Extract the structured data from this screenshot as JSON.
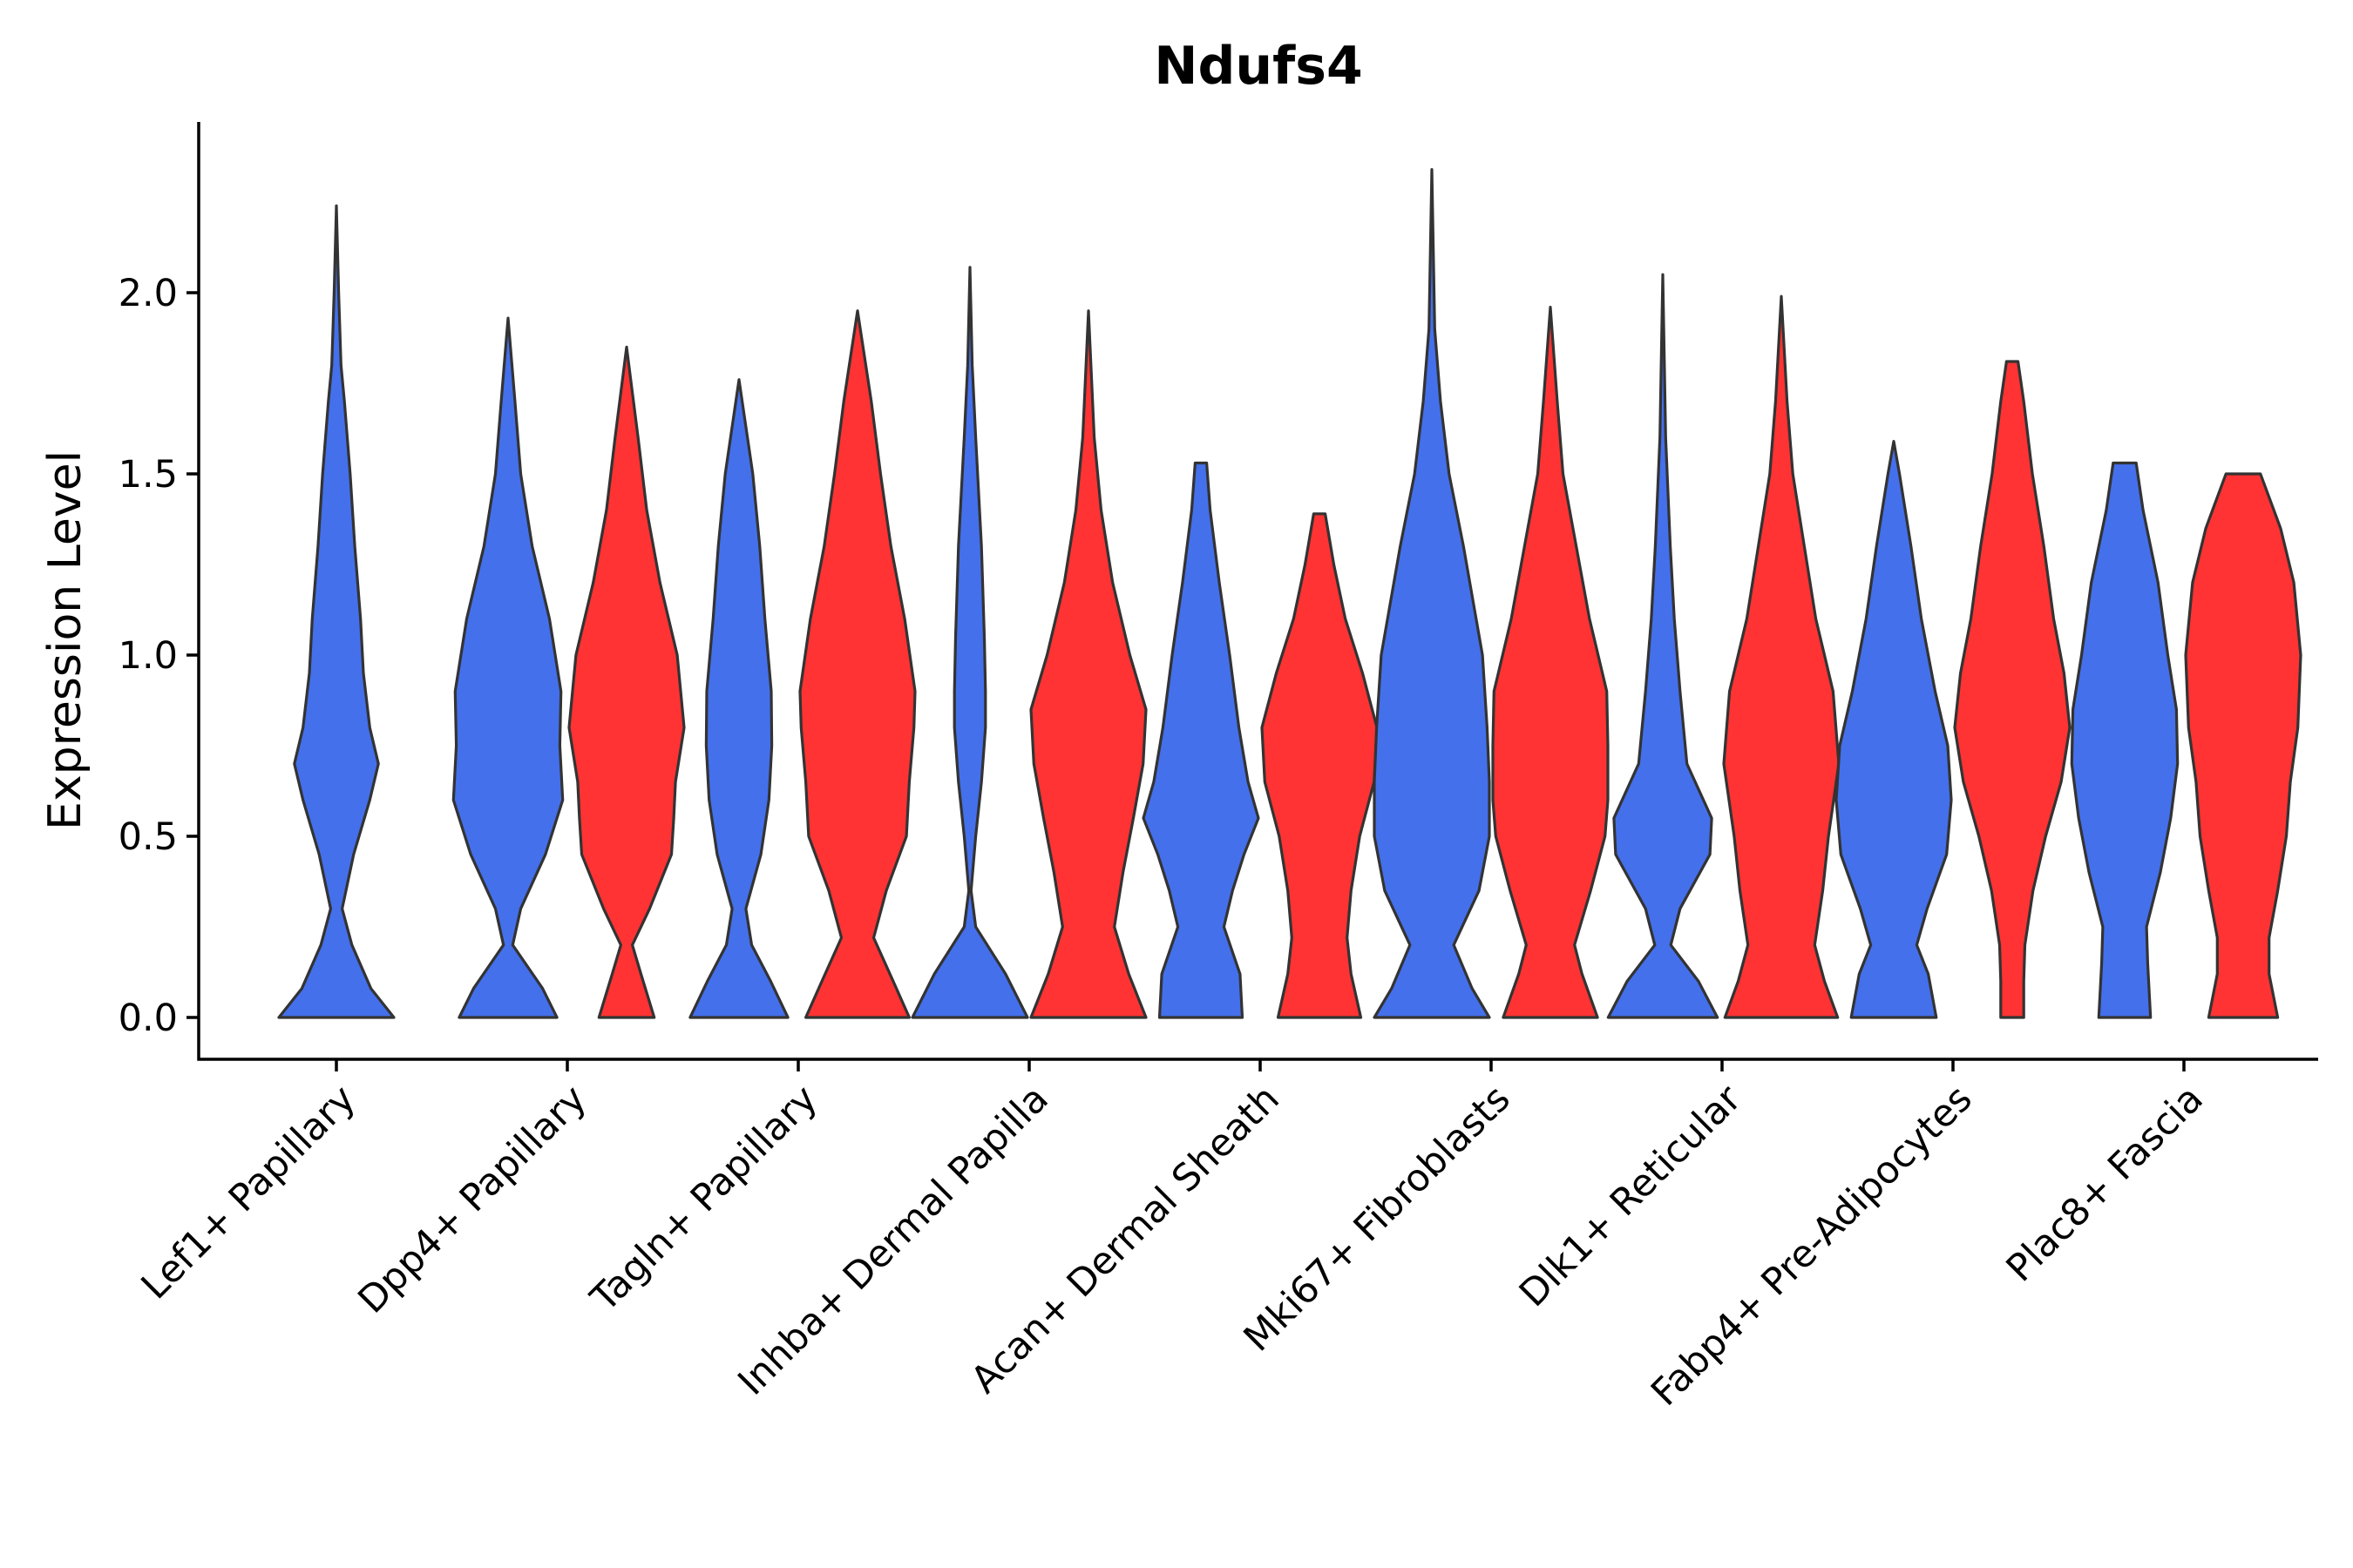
{
  "chart_data": {
    "type": "violin",
    "title": "Ndufs4",
    "ylabel": "Expression Level",
    "xlabel": "",
    "ylim": [
      -0.12,
      2.47
    ],
    "yticks": [
      "0.0",
      "0.5",
      "1.0",
      "1.5",
      "2.0"
    ],
    "ytick_values": [
      0.0,
      0.5,
      1.0,
      1.5,
      2.0
    ],
    "grid": false,
    "legend": "none",
    "categories": [
      "Lef1+ Papillary",
      "Dpp4+ Papillary",
      "Tagln+ Papillary",
      "Inhba+ Dermal Papilla",
      "Acan+ Dermal Sheath",
      "Mki67+ Fibroblasts",
      "Dlk1+ Reticular",
      "Fabp4+ Pre-Adipocytes",
      "Plac8+ Fascia"
    ],
    "colors": {
      "group_1": "#4470EC",
      "group_2": "#FF3333",
      "outline": "#333333"
    },
    "violins": [
      {
        "category": "Lef1+ Papillary",
        "group": "group_1",
        "max": 2.24,
        "profile": [
          [
            0.0,
            1.0
          ],
          [
            0.08,
            0.6
          ],
          [
            0.2,
            0.27
          ],
          [
            0.3,
            0.1
          ],
          [
            0.45,
            0.3
          ],
          [
            0.6,
            0.58
          ],
          [
            0.7,
            0.73
          ],
          [
            0.8,
            0.58
          ],
          [
            0.95,
            0.47
          ],
          [
            1.1,
            0.42
          ],
          [
            1.3,
            0.32
          ],
          [
            1.5,
            0.24
          ],
          [
            1.7,
            0.14
          ],
          [
            1.8,
            0.08
          ],
          [
            2.0,
            0.04
          ],
          [
            2.24,
            0.0
          ]
        ]
      },
      {
        "category": "Dpp4+ Papillary",
        "group": "group_1",
        "max": 1.93,
        "profile": [
          [
            0.0,
            0.85
          ],
          [
            0.08,
            0.6
          ],
          [
            0.2,
            0.08
          ],
          [
            0.3,
            0.22
          ],
          [
            0.45,
            0.65
          ],
          [
            0.6,
            0.95
          ],
          [
            0.75,
            0.9
          ],
          [
            0.9,
            0.92
          ],
          [
            1.1,
            0.72
          ],
          [
            1.3,
            0.42
          ],
          [
            1.5,
            0.22
          ],
          [
            1.7,
            0.12
          ],
          [
            1.93,
            0.0
          ]
        ]
      },
      {
        "category": "Dpp4+ Papillary",
        "group": "group_2",
        "max": 1.85,
        "profile": [
          [
            0.0,
            0.48
          ],
          [
            0.12,
            0.25
          ],
          [
            0.2,
            0.1
          ],
          [
            0.3,
            0.4
          ],
          [
            0.45,
            0.78
          ],
          [
            0.55,
            0.82
          ],
          [
            0.65,
            0.85
          ],
          [
            0.8,
            1.0
          ],
          [
            1.0,
            0.88
          ],
          [
            1.2,
            0.58
          ],
          [
            1.4,
            0.35
          ],
          [
            1.6,
            0.2
          ],
          [
            1.85,
            0.0
          ]
        ]
      },
      {
        "category": "Tagln+ Papillary",
        "group": "group_1",
        "max": 1.76,
        "profile": [
          [
            0.0,
            0.85
          ],
          [
            0.1,
            0.55
          ],
          [
            0.2,
            0.22
          ],
          [
            0.3,
            0.12
          ],
          [
            0.45,
            0.38
          ],
          [
            0.6,
            0.52
          ],
          [
            0.75,
            0.57
          ],
          [
            0.9,
            0.56
          ],
          [
            1.1,
            0.45
          ],
          [
            1.3,
            0.36
          ],
          [
            1.5,
            0.24
          ],
          [
            1.76,
            0.0
          ]
        ]
      },
      {
        "category": "Tagln+ Papillary",
        "group": "group_2",
        "max": 1.95,
        "profile": [
          [
            0.0,
            0.9
          ],
          [
            0.1,
            0.62
          ],
          [
            0.22,
            0.28
          ],
          [
            0.35,
            0.5
          ],
          [
            0.5,
            0.85
          ],
          [
            0.65,
            0.9
          ],
          [
            0.8,
            0.98
          ],
          [
            0.9,
            1.0
          ],
          [
            1.1,
            0.82
          ],
          [
            1.3,
            0.58
          ],
          [
            1.5,
            0.4
          ],
          [
            1.7,
            0.24
          ],
          [
            1.95,
            0.0
          ]
        ]
      },
      {
        "category": "Inhba+ Dermal Papilla",
        "group": "group_1",
        "max": 2.07,
        "profile": [
          [
            0.0,
            1.0
          ],
          [
            0.12,
            0.62
          ],
          [
            0.25,
            0.1
          ],
          [
            0.35,
            0.02
          ],
          [
            0.5,
            0.1
          ],
          [
            0.65,
            0.2
          ],
          [
            0.8,
            0.27
          ],
          [
            0.9,
            0.27
          ],
          [
            1.05,
            0.25
          ],
          [
            1.3,
            0.2
          ],
          [
            1.6,
            0.1
          ],
          [
            1.8,
            0.04
          ],
          [
            2.07,
            0.0
          ]
        ]
      },
      {
        "category": "Inhba+ Dermal Papilla",
        "group": "group_2",
        "max": 1.95,
        "profile": [
          [
            0.0,
            1.0
          ],
          [
            0.12,
            0.7
          ],
          [
            0.25,
            0.45
          ],
          [
            0.4,
            0.6
          ],
          [
            0.55,
            0.78
          ],
          [
            0.7,
            0.95
          ],
          [
            0.85,
            1.0
          ],
          [
            1.0,
            0.72
          ],
          [
            1.2,
            0.42
          ],
          [
            1.4,
            0.22
          ],
          [
            1.6,
            0.1
          ],
          [
            1.95,
            0.0
          ]
        ]
      },
      {
        "category": "Acan+ Dermal Sheath",
        "group": "group_1",
        "max": 1.53,
        "profile": [
          [
            0.0,
            0.72
          ],
          [
            0.12,
            0.68
          ],
          [
            0.25,
            0.4
          ],
          [
            0.35,
            0.55
          ],
          [
            0.45,
            0.75
          ],
          [
            0.55,
            1.0
          ],
          [
            0.65,
            0.82
          ],
          [
            0.8,
            0.66
          ],
          [
            1.0,
            0.5
          ],
          [
            1.2,
            0.32
          ],
          [
            1.4,
            0.16
          ],
          [
            1.53,
            0.1
          ],
          [
            1.53,
            0.0
          ]
        ]
      },
      {
        "category": "Acan+ Dermal Sheath",
        "group": "group_2",
        "max": 1.39,
        "profile": [
          [
            0.0,
            0.72
          ],
          [
            0.12,
            0.55
          ],
          [
            0.22,
            0.48
          ],
          [
            0.35,
            0.55
          ],
          [
            0.5,
            0.7
          ],
          [
            0.65,
            0.95
          ],
          [
            0.8,
            1.0
          ],
          [
            0.95,
            0.75
          ],
          [
            1.1,
            0.45
          ],
          [
            1.25,
            0.25
          ],
          [
            1.39,
            0.1
          ],
          [
            1.39,
            0.0
          ]
        ]
      },
      {
        "category": "Mki67+ Fibroblasts",
        "group": "group_1",
        "max": 2.34,
        "profile": [
          [
            0.0,
            1.0
          ],
          [
            0.08,
            0.7
          ],
          [
            0.2,
            0.38
          ],
          [
            0.35,
            0.82
          ],
          [
            0.5,
            1.0
          ],
          [
            0.65,
            1.0
          ],
          [
            0.8,
            0.96
          ],
          [
            1.0,
            0.88
          ],
          [
            1.3,
            0.55
          ],
          [
            1.5,
            0.3
          ],
          [
            1.7,
            0.15
          ],
          [
            1.9,
            0.05
          ],
          [
            2.34,
            0.0
          ]
        ]
      },
      {
        "category": "Mki67+ Fibroblasts",
        "group": "group_2",
        "max": 1.96,
        "profile": [
          [
            0.0,
            0.82
          ],
          [
            0.12,
            0.55
          ],
          [
            0.2,
            0.42
          ],
          [
            0.35,
            0.7
          ],
          [
            0.5,
            0.95
          ],
          [
            0.6,
            1.0
          ],
          [
            0.75,
            1.0
          ],
          [
            0.9,
            0.98
          ],
          [
            1.1,
            0.68
          ],
          [
            1.3,
            0.45
          ],
          [
            1.5,
            0.22
          ],
          [
            1.7,
            0.12
          ],
          [
            1.96,
            0.0
          ]
        ]
      },
      {
        "category": "Dlk1+ Reticular",
        "group": "group_1",
        "max": 2.05,
        "profile": [
          [
            0.0,
            0.95
          ],
          [
            0.1,
            0.62
          ],
          [
            0.2,
            0.14
          ],
          [
            0.3,
            0.3
          ],
          [
            0.45,
            0.82
          ],
          [
            0.55,
            0.85
          ],
          [
            0.7,
            0.42
          ],
          [
            0.9,
            0.3
          ],
          [
            1.1,
            0.2
          ],
          [
            1.3,
            0.13
          ],
          [
            1.6,
            0.05
          ],
          [
            2.05,
            0.0
          ]
        ]
      },
      {
        "category": "Dlk1+ Reticular",
        "group": "group_2",
        "max": 1.99,
        "profile": [
          [
            0.0,
            0.98
          ],
          [
            0.1,
            0.75
          ],
          [
            0.2,
            0.58
          ],
          [
            0.35,
            0.72
          ],
          [
            0.5,
            0.82
          ],
          [
            0.7,
            1.0
          ],
          [
            0.9,
            0.9
          ],
          [
            1.1,
            0.6
          ],
          [
            1.3,
            0.4
          ],
          [
            1.5,
            0.2
          ],
          [
            1.7,
            0.1
          ],
          [
            1.99,
            0.0
          ]
        ]
      },
      {
        "category": "Fabp4+ Pre-Adipocytes",
        "group": "group_1",
        "max": 1.59,
        "profile": [
          [
            0.0,
            0.74
          ],
          [
            0.12,
            0.6
          ],
          [
            0.2,
            0.4
          ],
          [
            0.3,
            0.58
          ],
          [
            0.45,
            0.92
          ],
          [
            0.6,
            1.0
          ],
          [
            0.75,
            0.94
          ],
          [
            0.9,
            0.72
          ],
          [
            1.1,
            0.48
          ],
          [
            1.3,
            0.3
          ],
          [
            1.5,
            0.1
          ],
          [
            1.59,
            0.0
          ]
        ]
      },
      {
        "category": "Fabp4+ Pre-Adipocytes",
        "group": "group_2",
        "max": 1.81,
        "profile": [
          [
            0.0,
            0.2
          ],
          [
            0.1,
            0.2
          ],
          [
            0.2,
            0.22
          ],
          [
            0.35,
            0.36
          ],
          [
            0.5,
            0.58
          ],
          [
            0.65,
            0.85
          ],
          [
            0.8,
            1.0
          ],
          [
            0.95,
            0.9
          ],
          [
            1.1,
            0.72
          ],
          [
            1.3,
            0.55
          ],
          [
            1.5,
            0.35
          ],
          [
            1.7,
            0.2
          ],
          [
            1.81,
            0.1
          ],
          [
            1.81,
            0.0
          ]
        ]
      },
      {
        "category": "Plac8+ Fascia",
        "group": "group_1",
        "max": 1.53,
        "profile": [
          [
            0.0,
            0.45
          ],
          [
            0.15,
            0.4
          ],
          [
            0.25,
            0.38
          ],
          [
            0.4,
            0.62
          ],
          [
            0.55,
            0.8
          ],
          [
            0.7,
            0.92
          ],
          [
            0.85,
            0.9
          ],
          [
            1.0,
            0.75
          ],
          [
            1.2,
            0.58
          ],
          [
            1.4,
            0.32
          ],
          [
            1.53,
            0.2
          ],
          [
            1.53,
            0.0
          ]
        ]
      },
      {
        "category": "Plac8+ Fascia",
        "group": "group_2",
        "max": 1.5,
        "profile": [
          [
            0.0,
            0.6
          ],
          [
            0.12,
            0.45
          ],
          [
            0.22,
            0.45
          ],
          [
            0.35,
            0.6
          ],
          [
            0.5,
            0.75
          ],
          [
            0.65,
            0.82
          ],
          [
            0.8,
            0.95
          ],
          [
            1.0,
            1.0
          ],
          [
            1.2,
            0.88
          ],
          [
            1.35,
            0.65
          ],
          [
            1.5,
            0.3
          ],
          [
            1.5,
            0.0
          ]
        ]
      }
    ]
  }
}
